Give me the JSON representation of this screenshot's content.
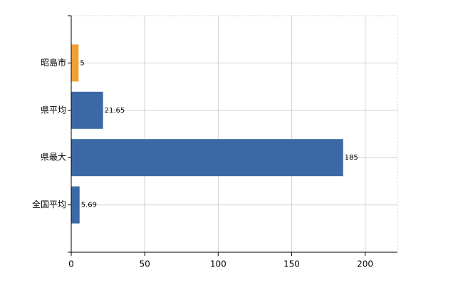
{
  "chart_data": {
    "type": "bar",
    "orientation": "horizontal",
    "categories": [
      "昭島市",
      "県平均",
      "県最大",
      "全国平均"
    ],
    "values": [
      5,
      21.65,
      185,
      5.69
    ],
    "colors": [
      "#f0a030",
      "#3b69a6",
      "#3b69a6",
      "#3b69a6"
    ],
    "xlim": [
      0,
      222
    ],
    "xticks": [
      0,
      50,
      100,
      150,
      200
    ],
    "grid": true
  }
}
